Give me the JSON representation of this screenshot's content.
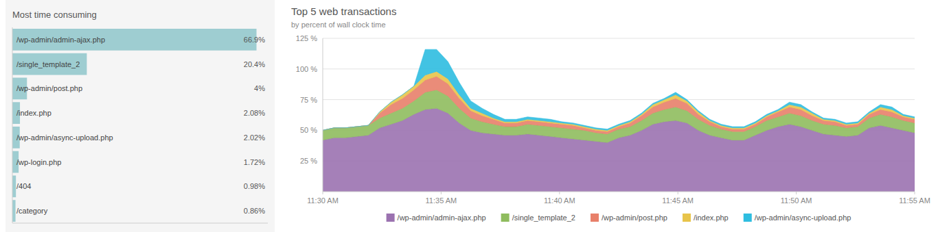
{
  "chart_data": [
    {
      "type": "bar",
      "orientation": "horizontal",
      "title": "Most time consuming",
      "categories": [
        "/wp-admin/admin-ajax.php",
        "/single_template_2",
        "/wp-admin/post.php",
        "/index.php",
        "/wp-admin/async-upload.php",
        "/wp-login.php",
        "/404",
        "/category"
      ],
      "values": [
        66.9,
        20.4,
        4,
        2.08,
        2.02,
        1.72,
        0.98,
        0.86
      ],
      "value_labels": [
        "66.9%",
        "20.4%",
        "4%",
        "2.08%",
        "2.02%",
        "1.72%",
        "0.98%",
        "0.86%"
      ],
      "color": "#9ecdd1",
      "xlim": [
        0,
        70
      ],
      "tick_labels": false,
      "data_labels": true
    },
    {
      "type": "area",
      "stacked": true,
      "title": "Top 5 web transactions",
      "subtitle": "by percent of wall clock time",
      "x": [
        0,
        1,
        2,
        3,
        4,
        5,
        6,
        7,
        8,
        9,
        10,
        11,
        12,
        13,
        14,
        15,
        16,
        17,
        18,
        19,
        20,
        21,
        22,
        23,
        24,
        25,
        26,
        27,
        28,
        29,
        30,
        31,
        32,
        33,
        34,
        35,
        36,
        37,
        38,
        39,
        40,
        41,
        42,
        43,
        44,
        45,
        46,
        47,
        48,
        49,
        50,
        51,
        52
      ],
      "xlim": [
        0,
        52
      ],
      "xticks": [
        {
          "value": 0,
          "label": "11:30 AM"
        },
        {
          "value": 10.4,
          "label": "11:35 AM"
        },
        {
          "value": 20.8,
          "label": "11:40 AM"
        },
        {
          "value": 31.2,
          "label": "11:45 AM"
        },
        {
          "value": 41.6,
          "label": "11:50 AM"
        },
        {
          "value": 52,
          "label": "11:55 AM"
        }
      ],
      "ylim": [
        0,
        125
      ],
      "yticks": [
        {
          "value": 25,
          "label": "25 %"
        },
        {
          "value": 50,
          "label": "50 %"
        },
        {
          "value": 75,
          "label": "75 %"
        },
        {
          "value": 100,
          "label": "100 %"
        },
        {
          "value": 125,
          "label": "125 %"
        }
      ],
      "grid": true,
      "legend": "bottom",
      "series": [
        {
          "name": "/wp-admin/admin-ajax.php",
          "color": "#9b72b0",
          "values": [
            42,
            44,
            44,
            45,
            46,
            52,
            55,
            58,
            63,
            67,
            68,
            64,
            56,
            50,
            48,
            47,
            46,
            46,
            47,
            46,
            45,
            44,
            43,
            42,
            41,
            40,
            44,
            46,
            50,
            55,
            57,
            58,
            56,
            50,
            46,
            44,
            42,
            42,
            46,
            50,
            53,
            55,
            53,
            50,
            47,
            46,
            45,
            46,
            52,
            54,
            52,
            50,
            48
          ]
        },
        {
          "name": "/single_template_2",
          "color": "#8fbc5e",
          "values": [
            8,
            8,
            8,
            8,
            8,
            8,
            9,
            10,
            11,
            14,
            15,
            14,
            12,
            10,
            9,
            8,
            7,
            7,
            8,
            8,
            8,
            8,
            8,
            8,
            7,
            7,
            7,
            7,
            8,
            9,
            10,
            11,
            10,
            9,
            8,
            7,
            7,
            7,
            7,
            8,
            8,
            9,
            9,
            8,
            8,
            8,
            7,
            7,
            8,
            9,
            9,
            8,
            8
          ]
        },
        {
          "name": "/wp-admin/post.php",
          "color": "#e8806a",
          "values": [
            0,
            0,
            0,
            0,
            0,
            4,
            7,
            8,
            9,
            10,
            11,
            10,
            8,
            6,
            5,
            4,
            3,
            3,
            3,
            3,
            3,
            3,
            3,
            2,
            2,
            2,
            2,
            3,
            4,
            5,
            6,
            7,
            6,
            4,
            3,
            2,
            2,
            2,
            2,
            3,
            4,
            5,
            5,
            4,
            3,
            3,
            2,
            2,
            3,
            4,
            4,
            3,
            3
          ]
        },
        {
          "name": "/index.php",
          "color": "#e8c44a",
          "values": [
            0,
            0,
            0,
            0,
            0,
            1,
            2,
            3,
            3,
            4,
            4,
            4,
            3,
            2,
            2,
            1,
            1,
            1,
            1,
            1,
            1,
            1,
            1,
            1,
            1,
            1,
            1,
            1,
            1,
            2,
            2,
            3,
            2,
            2,
            1,
            1,
            1,
            1,
            1,
            1,
            1,
            2,
            2,
            2,
            1,
            1,
            1,
            1,
            1,
            2,
            2,
            1,
            1
          ]
        },
        {
          "name": "/wp-admin/async-upload.php",
          "color": "#2ebde0",
          "values": [
            0,
            0,
            0,
            0,
            0,
            0,
            0,
            0,
            0,
            21,
            18,
            14,
            10,
            6,
            4,
            3,
            2,
            2,
            2,
            2,
            2,
            1,
            1,
            1,
            1,
            1,
            1,
            1,
            1,
            1,
            1,
            2,
            1,
            1,
            1,
            1,
            1,
            1,
            1,
            1,
            1,
            2,
            2,
            1,
            1,
            1,
            1,
            1,
            1,
            2,
            2,
            1,
            1
          ]
        }
      ]
    }
  ]
}
